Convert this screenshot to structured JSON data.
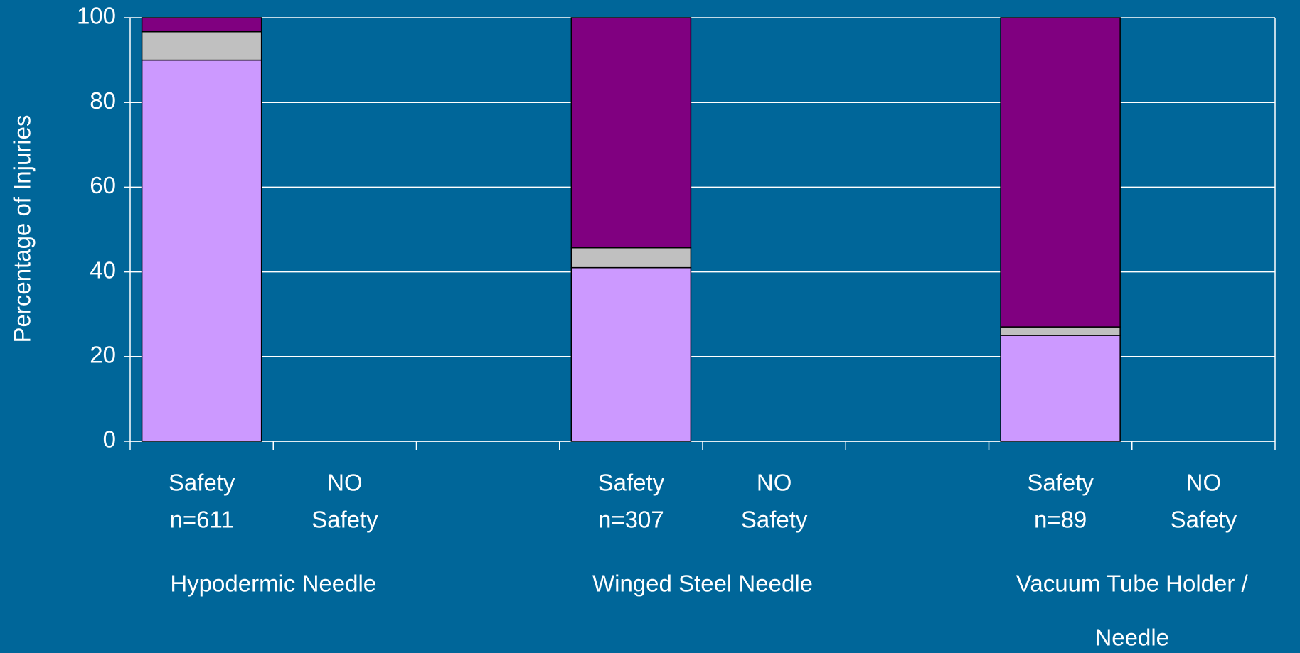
{
  "chart_data": {
    "type": "stacked_bar",
    "y_label": "Percentage of Injuries",
    "categories": [
      [
        "Safety",
        "n=611"
      ],
      [
        "NO",
        "Safety"
      ],
      null,
      [
        "Safety",
        "n=307"
      ],
      [
        "NO",
        "Safety"
      ],
      null,
      [
        "Safety",
        "n=89"
      ],
      [
        "NO",
        "Safety"
      ]
    ],
    "groups": [
      [
        "Hypodermic Needle"
      ],
      [
        "Winged Steel Needle"
      ],
      [
        "Vacuum Tube Holder /",
        "Needle"
      ]
    ],
    "series": [
      {
        "color": "#cc99ff",
        "values": [
          90,
          null,
          null,
          41,
          null,
          null,
          25,
          null
        ]
      },
      {
        "color": "#c0c0c0",
        "values": [
          6.7,
          null,
          null,
          4.7,
          null,
          null,
          2,
          null
        ]
      },
      {
        "color": "#800080",
        "values": [
          3.3,
          null,
          null,
          54.3,
          null,
          null,
          73,
          null
        ]
      }
    ],
    "ylim": [
      0,
      100
    ],
    "yticks": [
      0,
      20,
      40,
      60,
      80,
      100
    ],
    "grid": true
  }
}
